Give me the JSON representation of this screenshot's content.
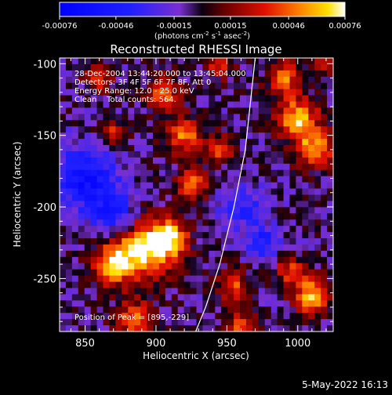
{
  "chart_data": {
    "type": "heatmap",
    "title": "Reconstructed RHESSI Image",
    "xlabel": "Heliocentric X (arcsec)",
    "ylabel": "Heliocentric Y (arcsec)",
    "xlim": [
      832,
      1025
    ],
    "ylim": [
      -287,
      -96
    ],
    "x_ticks": [
      850,
      900,
      950,
      1000
    ],
    "y_ticks": [
      -100,
      -150,
      -200,
      -250
    ],
    "colorbar": {
      "range": [
        -0.00076,
        0.00076
      ],
      "ticks": [
        -0.00076,
        -0.00046,
        -0.00015,
        0.00015,
        0.00046,
        0.00076
      ],
      "tick_labels": [
        "-0.00076",
        "-0.00046",
        "-0.00015",
        "0.00015",
        "0.00046",
        "0.00076"
      ],
      "units_prefix": "(photons cm",
      "units_sup1": "-2",
      "units_mid": " s",
      "units_sup2": "-1",
      "units_mid2": " asec",
      "units_sup3": "-2",
      "units_suffix": ")"
    },
    "annotations": [
      "28-Dec-2004 13:44:20.000 to 13:45:04.000",
      "Detectors: 3F 4F 5F 6F 7F 8F, Att 0",
      "Energy Range: 12.0 - 25.0 keV",
      "Clean    Total counts: 564."
    ],
    "position_label": "Position of Peak = [895,-229]",
    "peak": [
      895,
      -229
    ],
    "limb_curve": [
      [
        928,
        -287
      ],
      [
        935,
        -270
      ],
      [
        945,
        -240
      ],
      [
        955,
        -200
      ],
      [
        963,
        -160
      ],
      [
        970,
        -96
      ]
    ],
    "intensity_sources": [
      {
        "x": 893,
        "y": -230,
        "sigma": 14,
        "amp": 1.0
      },
      {
        "x": 870,
        "y": -240,
        "sigma": 10,
        "amp": 0.85
      },
      {
        "x": 910,
        "y": -222,
        "sigma": 9,
        "amp": 0.8
      },
      {
        "x": 1000,
        "y": -138,
        "sigma": 10,
        "amp": 0.9
      },
      {
        "x": 1012,
        "y": -160,
        "sigma": 9,
        "amp": 0.85
      },
      {
        "x": 990,
        "y": -110,
        "sigma": 8,
        "amp": 0.7
      },
      {
        "x": 1010,
        "y": -262,
        "sigma": 9,
        "amp": 0.85
      },
      {
        "x": 995,
        "y": -245,
        "sigma": 7,
        "amp": 0.6
      },
      {
        "x": 920,
        "y": -150,
        "sigma": 9,
        "amp": 0.75
      },
      {
        "x": 925,
        "y": -185,
        "sigma": 8,
        "amp": 0.7
      },
      {
        "x": 905,
        "y": -120,
        "sigma": 8,
        "amp": 0.7
      },
      {
        "x": 945,
        "y": -160,
        "sigma": 7,
        "amp": 0.6
      },
      {
        "x": 870,
        "y": -150,
        "sigma": 7,
        "amp": 0.55
      },
      {
        "x": 860,
        "y": -110,
        "sigma": 7,
        "amp": 0.5
      },
      {
        "x": 955,
        "y": -255,
        "sigma": 8,
        "amp": 0.6
      },
      {
        "x": 960,
        "y": -285,
        "sigma": 8,
        "amp": 0.6
      },
      {
        "x": 885,
        "y": -278,
        "sigma": 9,
        "amp": 0.65
      },
      {
        "x": 945,
        "y": -100,
        "sigma": 7,
        "amp": 0.55
      },
      {
        "x": 1022,
        "y": -100,
        "sigma": 7,
        "amp": 0.5
      },
      {
        "x": 975,
        "y": -225,
        "sigma": 8,
        "amp": -0.5
      },
      {
        "x": 850,
        "y": -180,
        "sigma": 16,
        "amp": -0.7
      },
      {
        "x": 870,
        "y": -205,
        "sigma": 10,
        "amp": -0.5
      },
      {
        "x": 960,
        "y": -200,
        "sigma": 12,
        "amp": -0.4
      }
    ]
  },
  "footer": {
    "timestamp": "5-May-2022 16:13"
  }
}
